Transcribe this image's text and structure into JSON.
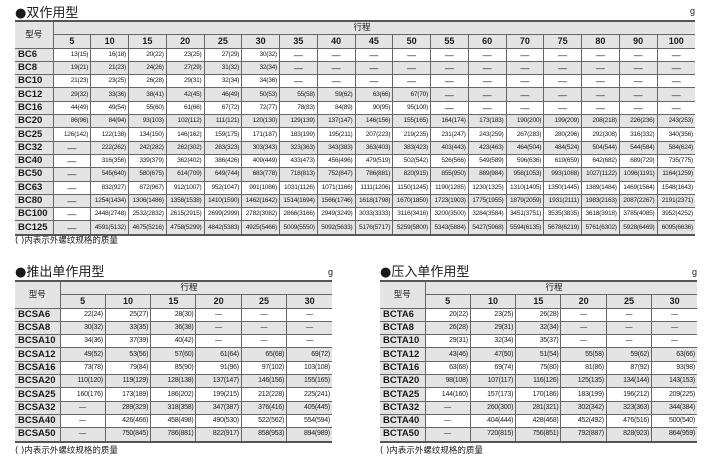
{
  "unit": "g",
  "note": "( )内表示外螺纹规格的质量",
  "double_acting": {
    "title": "●双作用型",
    "model_header": "型号",
    "stroke_header": "行程",
    "strokes": [
      "5",
      "10",
      "15",
      "20",
      "25",
      "30",
      "35",
      "40",
      "45",
      "50",
      "55",
      "60",
      "70",
      "75",
      "80",
      "90",
      "100"
    ],
    "rows": [
      {
        "model": "BC6",
        "values": [
          "13(15)",
          "16(18)",
          "20(22)",
          "23(25)",
          "27(29)",
          "30(32)",
          "—",
          "—",
          "—",
          "—",
          "—",
          "—",
          "—",
          "—",
          "—",
          "—",
          "—"
        ]
      },
      {
        "model": "BC8",
        "values": [
          "19(21)",
          "21(23)",
          "24(26)",
          "27(29)",
          "31(32)",
          "32(34)",
          "—",
          "—",
          "—",
          "—",
          "—",
          "—",
          "—",
          "—",
          "—",
          "—",
          "—"
        ]
      },
      {
        "model": "BC10",
        "values": [
          "21(23)",
          "23(25)",
          "26(28)",
          "29(31)",
          "32(34)",
          "34(36)",
          "—",
          "—",
          "—",
          "—",
          "—",
          "—",
          "—",
          "—",
          "—",
          "—",
          "—"
        ]
      },
      {
        "model": "BC12",
        "values": [
          "29(32)",
          "33(36)",
          "38(41)",
          "42(45)",
          "46(49)",
          "50(53)",
          "55(58)",
          "59(62)",
          "63(66)",
          "67(70)",
          "—",
          "—",
          "—",
          "—",
          "—",
          "—",
          "—"
        ]
      },
      {
        "model": "BC16",
        "values": [
          "44(49)",
          "49(54)",
          "55(60)",
          "61(66)",
          "67(72)",
          "72(77)",
          "78(83)",
          "84(89)",
          "90(95)",
          "95(100)",
          "—",
          "—",
          "—",
          "—",
          "—",
          "—",
          "—"
        ]
      },
      {
        "model": "BC20",
        "values": [
          "86(96)",
          "84(94)",
          "93(103)",
          "102(112)",
          "111(121)",
          "120(130)",
          "129(139)",
          "137(147)",
          "146(156)",
          "155(165)",
          "164(174)",
          "173(183)",
          "190(200)",
          "199(209)",
          "208(218)",
          "226(236)",
          "243(253)"
        ]
      },
      {
        "model": "BC25",
        "values": [
          "126(142)",
          "122(138)",
          "134(150)",
          "146(162)",
          "159(175)",
          "171(187)",
          "183(199)",
          "195(211)",
          "207(223)",
          "219(235)",
          "231(247)",
          "243(259)",
          "267(283)",
          "280(296)",
          "292(308)",
          "316(332)",
          "340(356)"
        ]
      },
      {
        "model": "BC32",
        "values": [
          "—",
          "222(262)",
          "242(282)",
          "262(302)",
          "283(323)",
          "303(343)",
          "323(363)",
          "343(383)",
          "363(403)",
          "383(423)",
          "403(443)",
          "423(463)",
          "464(504)",
          "484(524)",
          "504(544)",
          "544(584)",
          "584(624)"
        ]
      },
      {
        "model": "BC40",
        "values": [
          "—",
          "316(356)",
          "339(379)",
          "362(402)",
          "386(426)",
          "409(449)",
          "433(473)",
          "456(496)",
          "479(519)",
          "502(542)",
          "526(566)",
          "549(589)",
          "596(636)",
          "619(659)",
          "642(682)",
          "689(729)",
          "735(775)"
        ]
      },
      {
        "model": "BC50",
        "values": [
          "—",
          "545(640)",
          "580(675)",
          "614(709)",
          "649(744)",
          "683(778)",
          "718(813)",
          "752(847)",
          "786(881)",
          "820(915)",
          "855(950)",
          "889(984)",
          "958(1053)",
          "993(1088)",
          "1027(1122)",
          "1096(1191)",
          "1164(1259)"
        ]
      },
      {
        "model": "BC63",
        "values": [
          "—",
          "832(927)",
          "872(967)",
          "912(1007)",
          "952(1047)",
          "991(1086)",
          "1031(1126)",
          "1071(1166)",
          "1111(1206)",
          "1150(1245)",
          "1190(1285)",
          "1230(1325)",
          "1310(1405)",
          "1350(1445)",
          "1389(1484)",
          "1469(1564)",
          "1548(1643)"
        ]
      },
      {
        "model": "BC80",
        "values": [
          "—",
          "1254(1434)",
          "1306(1486)",
          "1358(1538)",
          "1410(1590)",
          "1462(1642)",
          "1514(1694)",
          "1566(1746)",
          "1618(1798)",
          "1670(1850)",
          "1723(1903)",
          "1775(1955)",
          "1879(2059)",
          "1931(2111)",
          "1983(2163)",
          "2087(2267)",
          "2191(2371)"
        ]
      },
      {
        "model": "BC100",
        "values": [
          "—",
          "2448(2748)",
          "2532(2832)",
          "2615(2915)",
          "2699(2999)",
          "2782(3082)",
          "2866(3166)",
          "2949(3249)",
          "3033(3333)",
          "3116(3416)",
          "3200(3500)",
          "3284(3584)",
          "3451(3751)",
          "3535(3835)",
          "3618(3918)",
          "3785(4085)",
          "3952(4252)"
        ]
      },
      {
        "model": "BC125",
        "values": [
          "—",
          "4591(5132)",
          "4675(5216)",
          "4758(5299)",
          "4842(5383)",
          "4925(5466)",
          "5009(5550)",
          "5092(5633)",
          "5176(5717)",
          "5259(5800)",
          "5343(5884)",
          "5427(5968)",
          "5594(6135)",
          "5678(6219)",
          "5761(6302)",
          "5928(6469)",
          "6095(6636)"
        ]
      }
    ]
  },
  "push_single": {
    "title": "●推出单作用型",
    "model_header": "型号",
    "stroke_header": "行程",
    "strokes": [
      "5",
      "10",
      "15",
      "20",
      "25",
      "30"
    ],
    "rows": [
      {
        "model": "BCSA6",
        "values": [
          "22(24)",
          "25(27)",
          "28(30)",
          "—",
          "—",
          "—"
        ]
      },
      {
        "model": "BCSA8",
        "values": [
          "30(32)",
          "33(35)",
          "36(38)",
          "—",
          "—",
          "—"
        ]
      },
      {
        "model": "BCSA10",
        "values": [
          "34(36)",
          "37(39)",
          "40(42)",
          "—",
          "—",
          "—"
        ]
      },
      {
        "model": "BCSA12",
        "values": [
          "49(52)",
          "53(56)",
          "57(60)",
          "61(64)",
          "65(68)",
          "69(72)"
        ]
      },
      {
        "model": "BCSA16",
        "values": [
          "73(78)",
          "79(84)",
          "85(90)",
          "91(96)",
          "97(102)",
          "103(108)"
        ]
      },
      {
        "model": "BCSA20",
        "values": [
          "110(120)",
          "119(129)",
          "128(138)",
          "137(147)",
          "146(156)",
          "155(165)"
        ]
      },
      {
        "model": "BCSA25",
        "values": [
          "160(176)",
          "173(189)",
          "186(202)",
          "199(215)",
          "212(228)",
          "225(241)"
        ]
      },
      {
        "model": "BCSA32",
        "values": [
          "—",
          "289(329)",
          "318(358)",
          "347(387)",
          "376(416)",
          "405(445)"
        ]
      },
      {
        "model": "BCSA40",
        "values": [
          "—",
          "426(466)",
          "458(498)",
          "490(530)",
          "522(562)",
          "554(594)"
        ]
      },
      {
        "model": "BCSA50",
        "values": [
          "—",
          "750(845)",
          "786(881)",
          "822(917)",
          "858(953)",
          "894(989)"
        ]
      }
    ]
  },
  "pull_single": {
    "title": "●压入单作用型",
    "model_header": "型号",
    "stroke_header": "行程",
    "strokes": [
      "5",
      "10",
      "15",
      "20",
      "25",
      "30"
    ],
    "rows": [
      {
        "model": "BCTA6",
        "values": [
          "20(22)",
          "23(25)",
          "26(28)",
          "—",
          "—",
          "—"
        ]
      },
      {
        "model": "BCTA8",
        "values": [
          "26(28)",
          "29(31)",
          "32(34)",
          "—",
          "—",
          "—"
        ]
      },
      {
        "model": "BCTA10",
        "values": [
          "29(31)",
          "32(34)",
          "35(37)",
          "—",
          "—",
          "—"
        ]
      },
      {
        "model": "BCTA12",
        "values": [
          "43(46)",
          "47(50)",
          "51(54)",
          "55(58)",
          "59(62)",
          "63(66)"
        ]
      },
      {
        "model": "BCTA16",
        "values": [
          "63(68)",
          "69(74)",
          "75(80)",
          "81(86)",
          "87(92)",
          "93(98)"
        ]
      },
      {
        "model": "BCTA20",
        "values": [
          "98(108)",
          "107(117)",
          "116(126)",
          "125(135)",
          "134(144)",
          "143(153)"
        ]
      },
      {
        "model": "BCTA25",
        "values": [
          "144(160)",
          "157(173)",
          "170(186)",
          "183(199)",
          "196(212)",
          "209(225)"
        ]
      },
      {
        "model": "BCTA32",
        "values": [
          "—",
          "260(300)",
          "281(321)",
          "302(342)",
          "323(363)",
          "344(384)"
        ]
      },
      {
        "model": "BCTA40",
        "values": [
          "—",
          "404(444)",
          "428(468)",
          "452(492)",
          "476(516)",
          "500(540)"
        ]
      },
      {
        "model": "BCTA50",
        "values": [
          "—",
          "720(815)",
          "756(851)",
          "792(887)",
          "828(923)",
          "864(959)"
        ]
      }
    ]
  }
}
